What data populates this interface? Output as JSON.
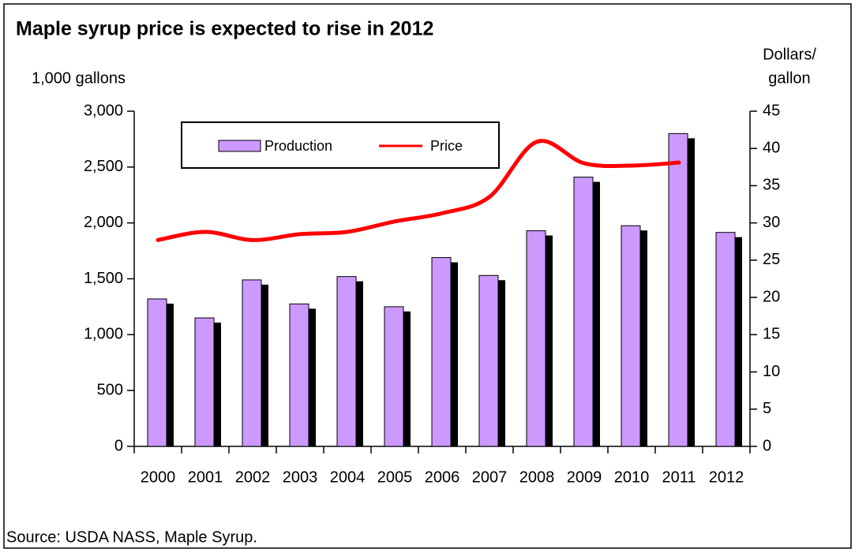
{
  "chart_data": {
    "type": "bar-line",
    "title": "Maple syrup price is expected to rise in 2012",
    "y_label": "1,000 gallons",
    "y2_label_lines": [
      "Dollars/",
      "gallon"
    ],
    "source": "Source: USDA NASS, Maple Syrup.",
    "categories": [
      "2000",
      "2001",
      "2002",
      "2003",
      "2004",
      "2005",
      "2006",
      "2007",
      "2008",
      "2009",
      "2010",
      "2011",
      "2012"
    ],
    "series": [
      {
        "name": "Production",
        "type": "bar",
        "color": "#cc99ff",
        "values": [
          1320,
          1150,
          1490,
          1275,
          1520,
          1250,
          1690,
          1530,
          1930,
          2410,
          1975,
          2800,
          1915
        ]
      },
      {
        "name": "Price",
        "type": "line",
        "axis": "y2",
        "color": "#ff0000",
        "values": [
          27.7,
          28.8,
          27.7,
          28.5,
          28.8,
          30.2,
          31.3,
          33.5,
          40.9,
          38.0,
          37.7,
          38.1,
          null
        ]
      }
    ],
    "ylim": [
      0,
      3000
    ],
    "yticks": [
      0,
      500,
      {
        "value": 1000,
        "label": "1,000"
      },
      {
        "value": 1500,
        "label": "1,500"
      },
      {
        "value": 2000,
        "label": "2,000"
      },
      {
        "value": 2500,
        "label": "2,500"
      },
      {
        "value": 3000,
        "label": "3,000"
      }
    ],
    "y2lim": [
      0,
      45
    ],
    "y2ticks": [
      0,
      5,
      10,
      15,
      20,
      25,
      30,
      35,
      40,
      45
    ]
  }
}
